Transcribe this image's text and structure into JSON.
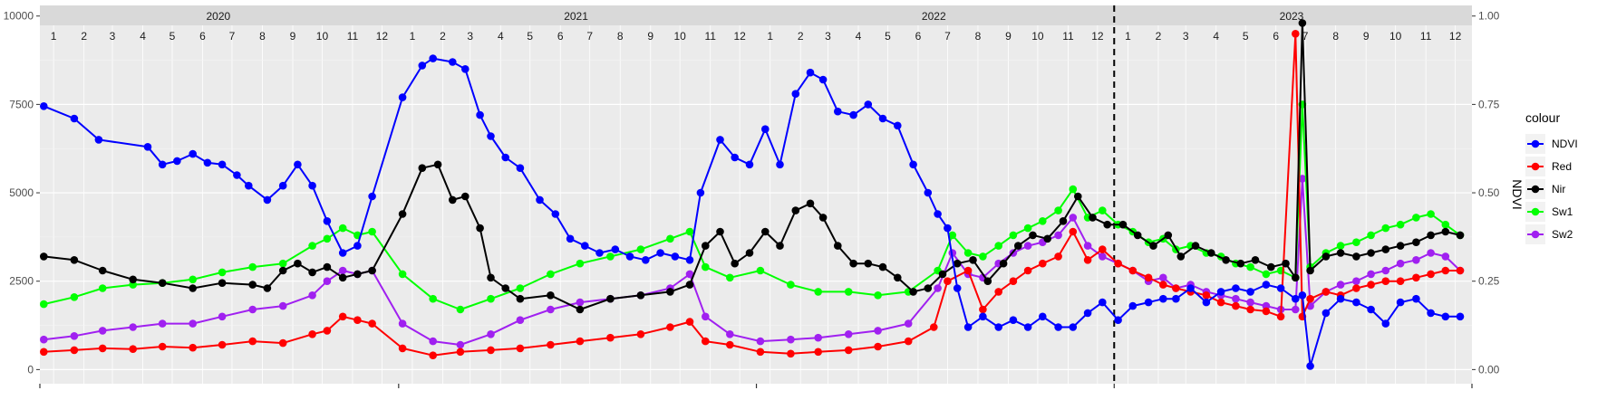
{
  "chart_data": {
    "type": "line",
    "x_range": [
      "2020-01-01",
      "2024-01-01"
    ],
    "y_left": {
      "ticks": [
        0,
        2500,
        5000,
        7500,
        10000
      ],
      "lim": [
        -400,
        10300
      ]
    },
    "y_right": {
      "label": "NDVI",
      "ticks": [
        0.0,
        0.25,
        0.5,
        0.75,
        1.0
      ]
    },
    "year_labels": [
      "2020",
      "2021",
      "2022",
      "2023"
    ],
    "month_labels": [
      "1",
      "2",
      "3",
      "4",
      "5",
      "6",
      "7",
      "8",
      "9",
      "10",
      "11",
      "12"
    ],
    "vline_date": "2023-01-01",
    "legend": {
      "title": "colour",
      "position": "right"
    },
    "series": [
      {
        "name": "NDVI",
        "color": "#0000ff",
        "axis": "right",
        "dates": [
          "2020-01-05",
          "2020-02-05",
          "2020-03-01",
          "2020-04-20",
          "2020-05-05",
          "2020-05-20",
          "2020-06-05",
          "2020-06-20",
          "2020-07-05",
          "2020-07-20",
          "2020-08-01",
          "2020-08-20",
          "2020-09-05",
          "2020-09-20",
          "2020-10-05",
          "2020-10-20",
          "2020-11-05",
          "2020-11-20",
          "2020-12-05",
          "2021-01-05",
          "2021-01-25",
          "2021-02-05",
          "2021-02-25",
          "2021-03-10",
          "2021-03-25",
          "2021-04-05",
          "2021-04-20",
          "2021-05-05",
          "2021-05-25",
          "2021-06-10",
          "2021-06-25",
          "2021-07-10",
          "2021-07-25",
          "2021-08-10",
          "2021-08-25",
          "2021-09-10",
          "2021-09-25",
          "2021-10-10",
          "2021-10-25",
          "2021-11-05",
          "2021-11-25",
          "2021-12-10",
          "2021-12-25",
          "2022-01-10",
          "2022-01-25",
          "2022-02-10",
          "2022-02-25",
          "2022-03-10",
          "2022-03-25",
          "2022-04-10",
          "2022-04-25",
          "2022-05-10",
          "2022-05-25",
          "2022-06-10",
          "2022-06-25",
          "2022-07-05",
          "2022-07-15",
          "2022-07-25",
          "2022-08-05",
          "2022-08-20",
          "2022-09-05",
          "2022-09-20",
          "2022-10-05",
          "2022-10-20",
          "2022-11-05",
          "2022-11-20",
          "2022-12-05",
          "2022-12-20",
          "2023-01-05",
          "2023-01-20",
          "2023-02-05",
          "2023-02-20",
          "2023-03-05",
          "2023-03-20",
          "2023-04-05",
          "2023-04-20",
          "2023-05-05",
          "2023-05-20",
          "2023-06-05",
          "2023-06-20",
          "2023-07-05",
          "2023-07-12",
          "2023-07-20",
          "2023-08-05",
          "2023-08-20",
          "2023-09-05",
          "2023-09-20",
          "2023-10-05",
          "2023-10-20",
          "2023-11-05",
          "2023-11-20",
          "2023-12-05",
          "2023-12-20"
        ],
        "values": [
          0.745,
          0.71,
          0.65,
          0.63,
          0.58,
          0.59,
          0.61,
          0.585,
          0.58,
          0.55,
          0.52,
          0.48,
          0.52,
          0.58,
          0.52,
          0.42,
          0.33,
          0.35,
          0.49,
          0.77,
          0.86,
          0.88,
          0.87,
          0.85,
          0.72,
          0.66,
          0.6,
          0.57,
          0.48,
          0.44,
          0.37,
          0.35,
          0.33,
          0.34,
          0.32,
          0.31,
          0.33,
          0.32,
          0.31,
          0.5,
          0.65,
          0.6,
          0.58,
          0.68,
          0.58,
          0.78,
          0.84,
          0.82,
          0.73,
          0.72,
          0.75,
          0.71,
          0.69,
          0.58,
          0.5,
          0.44,
          0.4,
          0.23,
          0.12,
          0.15,
          0.12,
          0.14,
          0.12,
          0.15,
          0.12,
          0.12,
          0.16,
          0.19,
          0.14,
          0.18,
          0.19,
          0.2,
          0.2,
          0.23,
          0.19,
          0.22,
          0.23,
          0.22,
          0.24,
          0.23,
          0.2,
          0.21,
          0.01,
          0.16,
          0.2,
          0.19,
          0.17,
          0.13,
          0.19,
          0.2,
          0.16,
          0.15,
          0.15
        ]
      },
      {
        "name": "Red",
        "color": "#ff0000",
        "axis": "left",
        "dates": [
          "2020-01-05",
          "2020-02-05",
          "2020-03-05",
          "2020-04-05",
          "2020-05-05",
          "2020-06-05",
          "2020-07-05",
          "2020-08-05",
          "2020-09-05",
          "2020-10-05",
          "2020-10-20",
          "2020-11-05",
          "2020-11-20",
          "2020-12-05",
          "2021-01-05",
          "2021-02-05",
          "2021-03-05",
          "2021-04-05",
          "2021-05-05",
          "2021-06-05",
          "2021-07-05",
          "2021-08-05",
          "2021-09-05",
          "2021-10-05",
          "2021-10-25",
          "2021-11-10",
          "2021-12-05",
          "2022-01-05",
          "2022-02-05",
          "2022-03-05",
          "2022-04-05",
          "2022-05-05",
          "2022-06-05",
          "2022-07-01",
          "2022-07-15",
          "2022-08-05",
          "2022-08-20",
          "2022-09-05",
          "2022-09-20",
          "2022-10-05",
          "2022-10-20",
          "2022-11-05",
          "2022-11-20",
          "2022-12-05",
          "2022-12-20",
          "2023-01-05",
          "2023-01-20",
          "2023-02-05",
          "2023-02-20",
          "2023-03-05",
          "2023-03-20",
          "2023-04-05",
          "2023-04-20",
          "2023-05-05",
          "2023-05-20",
          "2023-06-05",
          "2023-06-20",
          "2023-07-05",
          "2023-07-12",
          "2023-07-20",
          "2023-08-05",
          "2023-08-20",
          "2023-09-05",
          "2023-09-20",
          "2023-10-05",
          "2023-10-20",
          "2023-11-05",
          "2023-11-20",
          "2023-12-05",
          "2023-12-20"
        ],
        "values": [
          500,
          550,
          600,
          580,
          650,
          620,
          700,
          800,
          750,
          1000,
          1100,
          1500,
          1400,
          1300,
          600,
          400,
          500,
          550,
          600,
          700,
          800,
          900,
          1000,
          1200,
          1350,
          800,
          700,
          500,
          450,
          500,
          550,
          650,
          800,
          1200,
          2500,
          2800,
          1700,
          2200,
          2500,
          2800,
          3000,
          3200,
          3900,
          3100,
          3400,
          3000,
          2800,
          2600,
          2400,
          2300,
          2200,
          2100,
          1900,
          1800,
          1700,
          1650,
          1500,
          9500,
          1500,
          2000,
          2200,
          2100,
          2300,
          2400,
          2500,
          2500,
          2600,
          2700,
          2800,
          2800
        ]
      },
      {
        "name": "Nir",
        "color": "#000000",
        "axis": "left",
        "dates": [
          "2020-01-05",
          "2020-02-05",
          "2020-03-05",
          "2020-04-05",
          "2020-05-05",
          "2020-06-05",
          "2020-07-05",
          "2020-08-05",
          "2020-08-20",
          "2020-09-05",
          "2020-09-20",
          "2020-10-05",
          "2020-10-20",
          "2020-11-05",
          "2020-11-20",
          "2020-12-05",
          "2021-01-05",
          "2021-01-25",
          "2021-02-10",
          "2021-02-25",
          "2021-03-10",
          "2021-03-25",
          "2021-04-05",
          "2021-04-20",
          "2021-05-05",
          "2021-06-05",
          "2021-07-05",
          "2021-08-05",
          "2021-09-05",
          "2021-10-05",
          "2021-10-25",
          "2021-11-10",
          "2021-11-25",
          "2021-12-10",
          "2021-12-25",
          "2022-01-10",
          "2022-01-25",
          "2022-02-10",
          "2022-02-25",
          "2022-03-10",
          "2022-03-25",
          "2022-04-10",
          "2022-04-25",
          "2022-05-10",
          "2022-05-25",
          "2022-06-10",
          "2022-06-25",
          "2022-07-10",
          "2022-07-25",
          "2022-08-10",
          "2022-08-25",
          "2022-09-10",
          "2022-09-25",
          "2022-10-10",
          "2022-10-25",
          "2022-11-10",
          "2022-11-25",
          "2022-12-10",
          "2022-12-25",
          "2023-01-10",
          "2023-01-25",
          "2023-02-10",
          "2023-02-25",
          "2023-03-10",
          "2023-03-25",
          "2023-04-10",
          "2023-04-25",
          "2023-05-10",
          "2023-05-25",
          "2023-06-10",
          "2023-06-25",
          "2023-07-05",
          "2023-07-12",
          "2023-07-20",
          "2023-08-05",
          "2023-08-20",
          "2023-09-05",
          "2023-09-20",
          "2023-10-05",
          "2023-10-20",
          "2023-11-05",
          "2023-11-20",
          "2023-12-05",
          "2023-12-20"
        ],
        "values": [
          3200,
          3100,
          2800,
          2550,
          2450,
          2300,
          2450,
          2400,
          2300,
          2800,
          3000,
          2750,
          2900,
          2600,
          2700,
          2800,
          4400,
          5700,
          5800,
          4800,
          4900,
          4000,
          2600,
          2300,
          2000,
          2100,
          1700,
          2000,
          2100,
          2200,
          2400,
          3500,
          3900,
          3000,
          3300,
          3900,
          3500,
          4500,
          4700,
          4300,
          3500,
          3000,
          3000,
          2900,
          2600,
          2200,
          2300,
          2700,
          3000,
          3100,
          2500,
          3000,
          3500,
          3800,
          3700,
          4200,
          4900,
          4300,
          4100,
          4100,
          3800,
          3500,
          3800,
          3200,
          3500,
          3300,
          3100,
          3000,
          3100,
          2900,
          3000,
          2600,
          9800,
          2800,
          3200,
          3300,
          3200,
          3300,
          3400,
          3500,
          3600,
          3800,
          3900,
          3800
        ]
      },
      {
        "name": "Sw1",
        "color": "#00ff00",
        "axis": "left",
        "dates": [
          "2020-01-05",
          "2020-02-05",
          "2020-03-05",
          "2020-04-05",
          "2020-05-05",
          "2020-06-05",
          "2020-07-05",
          "2020-08-05",
          "2020-09-05",
          "2020-10-05",
          "2020-10-20",
          "2020-11-05",
          "2020-11-20",
          "2020-12-05",
          "2021-01-05",
          "2021-02-05",
          "2021-03-05",
          "2021-04-05",
          "2021-05-05",
          "2021-06-05",
          "2021-07-05",
          "2021-08-05",
          "2021-09-05",
          "2021-10-05",
          "2021-10-25",
          "2021-11-10",
          "2021-12-05",
          "2022-01-05",
          "2022-02-05",
          "2022-03-05",
          "2022-04-05",
          "2022-05-05",
          "2022-06-05",
          "2022-07-05",
          "2022-07-20",
          "2022-08-05",
          "2022-08-20",
          "2022-09-05",
          "2022-09-20",
          "2022-10-05",
          "2022-10-20",
          "2022-11-05",
          "2022-11-20",
          "2022-12-05",
          "2022-12-20",
          "2023-01-05",
          "2023-01-20",
          "2023-02-05",
          "2023-02-20",
          "2023-03-05",
          "2023-03-20",
          "2023-04-05",
          "2023-04-20",
          "2023-05-05",
          "2023-05-20",
          "2023-06-05",
          "2023-06-20",
          "2023-07-05",
          "2023-07-12",
          "2023-07-20",
          "2023-08-05",
          "2023-08-20",
          "2023-09-05",
          "2023-09-20",
          "2023-10-05",
          "2023-10-20",
          "2023-11-05",
          "2023-11-20",
          "2023-12-05",
          "2023-12-20"
        ],
        "values": [
          1850,
          2050,
          2300,
          2400,
          2450,
          2550,
          2750,
          2900,
          3000,
          3500,
          3700,
          4000,
          3800,
          3900,
          2700,
          2000,
          1700,
          2000,
          2300,
          2700,
          3000,
          3200,
          3400,
          3700,
          3900,
          2900,
          2600,
          2800,
          2400,
          2200,
          2200,
          2100,
          2200,
          2800,
          3800,
          3300,
          3200,
          3500,
          3800,
          4000,
          4200,
          4500,
          5100,
          4300,
          4500,
          4100,
          3900,
          3600,
          3700,
          3400,
          3500,
          3300,
          3200,
          3000,
          2900,
          2700,
          2800,
          2600,
          7500,
          2900,
          3300,
          3500,
          3600,
          3800,
          4000,
          4100,
          4300,
          4400,
          4100,
          3800
        ]
      },
      {
        "name": "Sw2",
        "color": "#a020f0",
        "axis": "left",
        "dates": [
          "2020-01-05",
          "2020-02-05",
          "2020-03-05",
          "2020-04-05",
          "2020-05-05",
          "2020-06-05",
          "2020-07-05",
          "2020-08-05",
          "2020-09-05",
          "2020-10-05",
          "2020-10-20",
          "2020-11-05",
          "2020-11-20",
          "2020-12-05",
          "2021-01-05",
          "2021-02-05",
          "2021-03-05",
          "2021-04-05",
          "2021-05-05",
          "2021-06-05",
          "2021-07-05",
          "2021-08-05",
          "2021-09-05",
          "2021-10-05",
          "2021-10-25",
          "2021-11-10",
          "2021-12-05",
          "2022-01-05",
          "2022-02-05",
          "2022-03-05",
          "2022-04-05",
          "2022-05-05",
          "2022-06-05",
          "2022-07-05",
          "2022-07-20",
          "2022-08-05",
          "2022-08-20",
          "2022-09-05",
          "2022-09-20",
          "2022-10-05",
          "2022-10-20",
          "2022-11-05",
          "2022-11-20",
          "2022-12-05",
          "2022-12-20",
          "2023-01-05",
          "2023-01-20",
          "2023-02-05",
          "2023-02-20",
          "2023-03-05",
          "2023-03-20",
          "2023-04-05",
          "2023-04-20",
          "2023-05-05",
          "2023-05-20",
          "2023-06-05",
          "2023-06-20",
          "2023-07-05",
          "2023-07-12",
          "2023-07-20",
          "2023-08-05",
          "2023-08-20",
          "2023-09-05",
          "2023-09-20",
          "2023-10-05",
          "2023-10-20",
          "2023-11-05",
          "2023-11-20",
          "2023-12-05",
          "2023-12-20"
        ],
        "values": [
          850,
          950,
          1100,
          1200,
          1300,
          1300,
          1500,
          1700,
          1800,
          2100,
          2500,
          2800,
          2700,
          2800,
          1300,
          800,
          700,
          1000,
          1400,
          1700,
          1900,
          2000,
          2100,
          2300,
          2700,
          1500,
          1000,
          800,
          850,
          900,
          1000,
          1100,
          1300,
          2300,
          3300,
          2700,
          2600,
          3000,
          3300,
          3500,
          3600,
          3800,
          4300,
          3500,
          3200,
          3000,
          2800,
          2500,
          2600,
          2300,
          2400,
          2200,
          2100,
          2000,
          1900,
          1800,
          1700,
          1700,
          5400,
          1800,
          2200,
          2400,
          2500,
          2700,
          2800,
          3000,
          3100,
          3300,
          3200,
          2800
        ]
      }
    ]
  }
}
